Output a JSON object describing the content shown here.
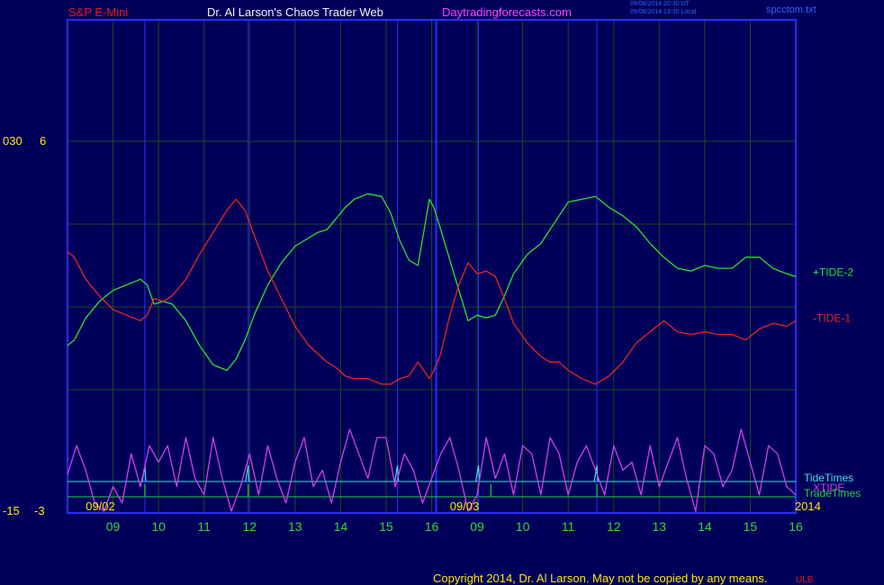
{
  "header": {
    "instrument": "S&P E-Mini",
    "title": "Dr. Al Larson's Chaos Trader Web",
    "site": "Daytradingforecasts.com",
    "timestamp_ut": "09/08/2014 20:30 UT",
    "timestamp_local": "09/08/2014 13:30 Local",
    "file": "spcctom.txt"
  },
  "footer": {
    "copyright": "Copyright 2014, Dr. Al Larson. May not be copied by any means.",
    "mark": "ULB"
  },
  "colors": {
    "background": "#00005a",
    "frame": "#2b2bff",
    "grid": "#1c4a1c",
    "tide2": "#2ee02e",
    "tide1": "#e8261e",
    "xtide": "#d040e8",
    "tidetimes": "#40e0e0",
    "tradetimes": "#20d040",
    "axis_text": "#ffe600",
    "hour_text": "#38d838"
  },
  "chart_data": {
    "type": "line",
    "xlim": [
      0,
      16
    ],
    "ylim": [
      -3,
      6
    ],
    "y_tick_labels": {
      "top": [
        "030",
        "6"
      ],
      "bottom": [
        "-15",
        "-3"
      ]
    },
    "x_hour_labels": [
      "09",
      "10",
      "11",
      "12",
      "13",
      "14",
      "15",
      "16",
      "09",
      "10",
      "11",
      "12",
      "13",
      "14",
      "15",
      "16"
    ],
    "date_labels": [
      {
        "text": "09/02",
        "x": 0.4
      },
      {
        "text": "09/03",
        "x": 8.4
      },
      {
        "text": "2014",
        "x": 15.9
      }
    ],
    "series": [
      {
        "name": "+TIDE-2",
        "role": "upper",
        "label": "+TIDE-2",
        "x": [
          0,
          0.15,
          0.4,
          0.7,
          1.0,
          1.3,
          1.6,
          1.75,
          1.9,
          2.1,
          2.3,
          2.6,
          2.9,
          3.2,
          3.5,
          3.7,
          3.9,
          4.1,
          4.4,
          4.7,
          5.0,
          5.3,
          5.5,
          5.7,
          5.9,
          6.1,
          6.3,
          6.6,
          6.9,
          7.1,
          7.3,
          7.5,
          7.7,
          7.95,
          8.05,
          8.2,
          8.4,
          8.6,
          8.8,
          9.0,
          9.2,
          9.4,
          9.6,
          9.8,
          10.1,
          10.4,
          10.6,
          10.8,
          11.0,
          11.3,
          11.6,
          11.9,
          12.2,
          12.5,
          12.8,
          13.1,
          13.4,
          13.7,
          14.0,
          14.3,
          14.6,
          14.9,
          15.2,
          15.5,
          15.8,
          16.0
        ],
        "values": [
          -1.4,
          -1.2,
          -0.4,
          0.2,
          0.6,
          0.8,
          1.0,
          0.8,
          0.1,
          0.2,
          0.1,
          -0.5,
          -1.4,
          -2.1,
          -2.3,
          -1.9,
          -1.2,
          -0.3,
          0.8,
          1.6,
          2.2,
          2.5,
          2.7,
          2.8,
          3.2,
          3.6,
          3.9,
          4.1,
          4.0,
          3.4,
          2.4,
          1.7,
          1.5,
          3.9,
          3.6,
          2.8,
          1.7,
          0.6,
          -0.5,
          -0.3,
          -0.4,
          -0.3,
          0.4,
          1.2,
          1.9,
          2.3,
          2.8,
          3.3,
          3.8,
          3.9,
          4.0,
          3.6,
          3.3,
          2.9,
          2.3,
          1.8,
          1.4,
          1.3,
          1.5,
          1.4,
          1.4,
          1.8,
          1.8,
          1.4,
          1.2,
          1.1
        ]
      },
      {
        "name": "-TIDE-1",
        "role": "lower",
        "label": "-TIDE-1",
        "x": [
          0,
          0.15,
          0.4,
          0.7,
          1.0,
          1.3,
          1.6,
          1.75,
          1.9,
          2.1,
          2.3,
          2.6,
          2.9,
          3.2,
          3.5,
          3.7,
          3.9,
          4.1,
          4.4,
          4.7,
          5.0,
          5.3,
          5.5,
          5.7,
          5.9,
          6.1,
          6.3,
          6.6,
          6.9,
          7.1,
          7.3,
          7.5,
          7.7,
          7.95,
          8.05,
          8.2,
          8.4,
          8.6,
          8.8,
          9.0,
          9.2,
          9.4,
          9.6,
          9.8,
          10.1,
          10.4,
          10.6,
          10.8,
          11.0,
          11.3,
          11.6,
          11.9,
          12.2,
          12.5,
          12.8,
          13.1,
          13.4,
          13.7,
          14.0,
          14.3,
          14.6,
          14.9,
          15.2,
          15.5,
          15.8,
          16.0
        ],
        "values": [
          2.0,
          1.8,
          1.0,
          0.4,
          -0.1,
          -0.3,
          -0.5,
          -0.3,
          0.3,
          0.2,
          0.4,
          1.0,
          1.9,
          2.7,
          3.5,
          3.9,
          3.5,
          2.6,
          1.3,
          0.3,
          -0.7,
          -1.4,
          -1.7,
          -2.0,
          -2.2,
          -2.5,
          -2.6,
          -2.6,
          -2.8,
          -2.8,
          -2.6,
          -2.5,
          -2.0,
          -2.6,
          -2.3,
          -1.7,
          -0.3,
          0.8,
          1.6,
          1.2,
          1.3,
          1.1,
          0.3,
          -0.6,
          -1.3,
          -1.8,
          -2.0,
          -2.0,
          -2.3,
          -2.6,
          -2.8,
          -2.5,
          -2.0,
          -1.3,
          -0.9,
          -0.5,
          -0.9,
          -1.0,
          -0.9,
          -1.0,
          -1.0,
          -1.2,
          -0.8,
          -0.6,
          -0.7,
          -0.5
        ]
      },
      {
        "name": "XTIDE",
        "role": "bottom-panel",
        "label": "XTIDE",
        "x": [
          0,
          0.2,
          0.4,
          0.6,
          0.8,
          1.0,
          1.2,
          1.4,
          1.6,
          1.8,
          2.0,
          2.2,
          2.4,
          2.6,
          2.8,
          3.0,
          3.2,
          3.4,
          3.6,
          3.8,
          4.0,
          4.2,
          4.4,
          4.6,
          4.8,
          5.0,
          5.2,
          5.4,
          5.6,
          5.8,
          6.0,
          6.2,
          6.4,
          6.6,
          6.8,
          7.0,
          7.2,
          7.4,
          7.6,
          7.8,
          8.0,
          8.2,
          8.4,
          8.6,
          8.8,
          9.0,
          9.2,
          9.4,
          9.6,
          9.8,
          10.0,
          10.2,
          10.4,
          10.6,
          10.8,
          11.0,
          11.2,
          11.4,
          11.6,
          11.8,
          12.0,
          12.2,
          12.4,
          12.6,
          12.8,
          13.0,
          13.2,
          13.4,
          13.6,
          13.8,
          14.0,
          14.2,
          14.4,
          14.6,
          14.8,
          15.0,
          15.2,
          15.4,
          15.6,
          15.8,
          16.0
        ],
        "values": [
          0.45,
          0.8,
          0.5,
          0.1,
          0.0,
          0.3,
          0.1,
          0.7,
          0.3,
          0.8,
          0.6,
          0.8,
          0.3,
          0.9,
          0.4,
          0.2,
          0.9,
          0.4,
          0.0,
          0.3,
          0.7,
          0.2,
          0.8,
          0.4,
          0.1,
          0.6,
          0.9,
          0.3,
          0.5,
          0.1,
          0.6,
          1.0,
          0.7,
          0.4,
          0.9,
          0.9,
          0.3,
          0.7,
          0.5,
          0.1,
          0.4,
          0.7,
          0.9,
          0.5,
          0.0,
          0.2,
          0.9,
          0.4,
          0.7,
          0.2,
          0.8,
          0.7,
          0.2,
          0.9,
          0.7,
          0.2,
          0.6,
          0.8,
          0.5,
          0.2,
          0.8,
          0.5,
          0.6,
          0.2,
          0.8,
          0.3,
          0.6,
          0.9,
          0.4,
          0.0,
          0.8,
          0.7,
          0.3,
          0.5,
          1.0,
          0.6,
          0.2,
          0.8,
          0.7,
          0.3,
          0.2
        ]
      }
    ],
    "markers": {
      "tidetimes": {
        "label": "TideTimes",
        "x": [
          1.7,
          3.97,
          7.25,
          9.03,
          11.63
        ]
      },
      "tradetimes": {
        "label": "TradeTimes",
        "x": [
          1.7,
          3.97,
          9.3,
          11.63
        ]
      }
    },
    "legend_placement": "right",
    "grid": true
  }
}
